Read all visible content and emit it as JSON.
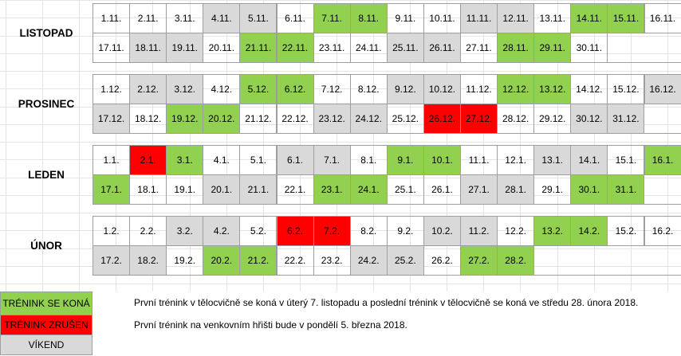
{
  "colors": {
    "training": "#92d050",
    "cancelled": "#ff0000",
    "weekend": "#d9d9d9"
  },
  "months": [
    {
      "name": "LISTOPAD",
      "rows": [
        [
          [
            "1.11.",
            ""
          ],
          [
            "2.11.",
            ""
          ],
          [
            "3.11.",
            ""
          ],
          [
            "4.11.",
            "w"
          ],
          [
            "5.11.",
            "w"
          ],
          [
            "6.11.",
            ""
          ],
          [
            "7.11.",
            "g"
          ],
          [
            "8.11.",
            "g"
          ],
          [
            "9.11.",
            ""
          ],
          [
            "10.11.",
            ""
          ],
          [
            "11.11.",
            "w"
          ],
          [
            "12.11.",
            "w"
          ],
          [
            "13.11.",
            ""
          ],
          [
            "14.11.",
            "g"
          ],
          [
            "15.11.",
            "g"
          ],
          [
            "16.11.",
            ""
          ]
        ],
        [
          [
            "17.11.",
            ""
          ],
          [
            "18.11.",
            "w"
          ],
          [
            "19.11.",
            "w"
          ],
          [
            "20.11.",
            ""
          ],
          [
            "21.11.",
            "g"
          ],
          [
            "22.11.",
            "g"
          ],
          [
            "23.11.",
            ""
          ],
          [
            "24.11.",
            ""
          ],
          [
            "25.11.",
            "w"
          ],
          [
            "26.11.",
            "w"
          ],
          [
            "27.11.",
            ""
          ],
          [
            "28.11.",
            "g"
          ],
          [
            "29.11.",
            "g"
          ],
          [
            "30.11.",
            ""
          ]
        ]
      ]
    },
    {
      "name": "PROSINEC",
      "rows": [
        [
          [
            "1.12.",
            ""
          ],
          [
            "2.12.",
            "w"
          ],
          [
            "3.12.",
            "w"
          ],
          [
            "4.12.",
            ""
          ],
          [
            "5.12.",
            "g"
          ],
          [
            "6.12.",
            "g"
          ],
          [
            "7.12.",
            ""
          ],
          [
            "8.12.",
            ""
          ],
          [
            "9.12.",
            "w"
          ],
          [
            "10.12.",
            "w"
          ],
          [
            "11.12.",
            ""
          ],
          [
            "12.12.",
            "g"
          ],
          [
            "13.12.",
            "g"
          ],
          [
            "14.12.",
            ""
          ],
          [
            "15.12.",
            ""
          ],
          [
            "16.12.",
            "w"
          ]
        ],
        [
          [
            "17.12.",
            "w"
          ],
          [
            "18.12.",
            ""
          ],
          [
            "19.12.",
            "g"
          ],
          [
            "20.12.",
            "g"
          ],
          [
            "21.12.",
            ""
          ],
          [
            "22.12.",
            ""
          ],
          [
            "23.12.",
            "w"
          ],
          [
            "24.12.",
            "w"
          ],
          [
            "25.12.",
            ""
          ],
          [
            "26.12.",
            "r"
          ],
          [
            "27.12.",
            "r"
          ],
          [
            "28.12.",
            ""
          ],
          [
            "29.12.",
            ""
          ],
          [
            "30.12.",
            "w"
          ],
          [
            "31.12.",
            "w"
          ]
        ]
      ]
    },
    {
      "name": "LEDEN",
      "rows": [
        [
          [
            "1.1.",
            ""
          ],
          [
            "2.1.",
            "r"
          ],
          [
            "3.1.",
            "g"
          ],
          [
            "4.1.",
            ""
          ],
          [
            "5.1.",
            ""
          ],
          [
            "6.1.",
            "w"
          ],
          [
            "7.1.",
            "w"
          ],
          [
            "8.1.",
            ""
          ],
          [
            "9.1.",
            "g"
          ],
          [
            "10.1.",
            "g"
          ],
          [
            "11.1.",
            ""
          ],
          [
            "12.1.",
            ""
          ],
          [
            "13.1.",
            "w"
          ],
          [
            "14.1.",
            "w"
          ],
          [
            "15.1.",
            ""
          ],
          [
            "16.1.",
            "g"
          ]
        ],
        [
          [
            "17.1.",
            "g"
          ],
          [
            "18.1.",
            ""
          ],
          [
            "19.1.",
            ""
          ],
          [
            "20.1.",
            "w"
          ],
          [
            "21.1.",
            "w"
          ],
          [
            "22.1.",
            ""
          ],
          [
            "23.1.",
            "g"
          ],
          [
            "24.1.",
            "g"
          ],
          [
            "25.1.",
            ""
          ],
          [
            "26.1.",
            ""
          ],
          [
            "27.1.",
            "w"
          ],
          [
            "28.1.",
            "w"
          ],
          [
            "29.1.",
            ""
          ],
          [
            "30.1.",
            "g"
          ],
          [
            "31.1.",
            "g"
          ]
        ]
      ]
    },
    {
      "name": "ÚNOR",
      "rows": [
        [
          [
            "1.2.",
            ""
          ],
          [
            "2.2.",
            ""
          ],
          [
            "3.2.",
            "w"
          ],
          [
            "4.2.",
            "w"
          ],
          [
            "5.2.",
            ""
          ],
          [
            "6.2.",
            "r"
          ],
          [
            "7.2.",
            "r"
          ],
          [
            "8.2.",
            ""
          ],
          [
            "9.2.",
            ""
          ],
          [
            "10.2.",
            "w"
          ],
          [
            "11.2.",
            "w"
          ],
          [
            "12.2.",
            ""
          ],
          [
            "13.2.",
            "g"
          ],
          [
            "14.2.",
            "g"
          ],
          [
            "15.2.",
            ""
          ],
          [
            "16.2.",
            ""
          ]
        ],
        [
          [
            "17.2.",
            "w"
          ],
          [
            "18.2.",
            "w"
          ],
          [
            "19.2.",
            ""
          ],
          [
            "20.2.",
            "g"
          ],
          [
            "21.2.",
            "g"
          ],
          [
            "22.2.",
            ""
          ],
          [
            "23.2.",
            ""
          ],
          [
            "24.2.",
            "w"
          ],
          [
            "25.2.",
            "w"
          ],
          [
            "26.2.",
            ""
          ],
          [
            "27.2.",
            "g"
          ],
          [
            "28.2.",
            "g"
          ]
        ]
      ]
    }
  ],
  "legend": {
    "training": "TRÉNINK SE KONÁ",
    "cancelled": "TRÉNINK ZRUŠEN",
    "weekend": "VÍKEND"
  },
  "notes": {
    "first": "První trénink v tělocvičně se koná v úterý 7. listopadu a poslední trénink v tělocvičně se koná ve středu 28. února 2018.",
    "second": "První trénink na venkovním hřišti bude v pondělí 5. března 2018."
  }
}
